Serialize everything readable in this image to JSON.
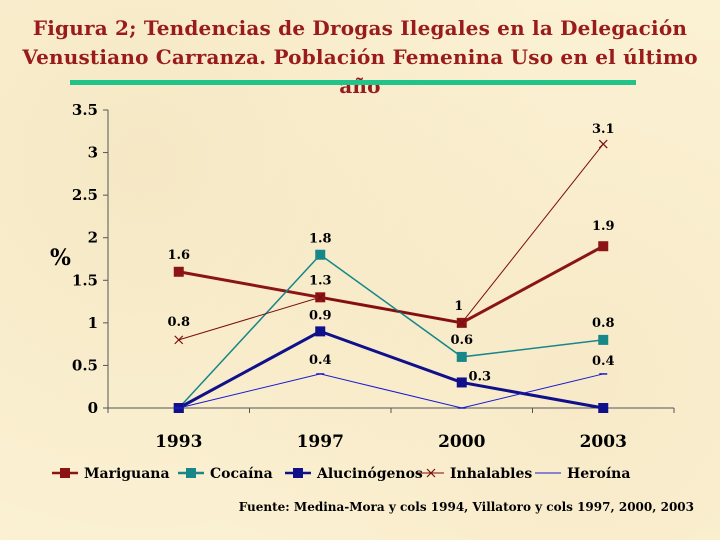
{
  "title_line1": "Figura 2; Tendencias de Drogas Ilegales en  la Delegación",
  "title_line2": "Venustiano Carranza. Población Femenina Uso en el último año",
  "source": "Fuente: Medina-Mora y cols 1994, Villatoro y cols 1997, 2000, 2003",
  "chart_data": {
    "type": "line",
    "ylabel": "%",
    "categories": [
      "1993",
      "1997",
      "2000",
      "2003"
    ],
    "yticks": [
      "0",
      "0.5",
      "1",
      "1.5",
      "2",
      "2.5",
      "3",
      "3.5"
    ],
    "ylim": [
      0,
      3.5
    ],
    "legend_position": "bottom",
    "series": [
      {
        "name": "Mariguana",
        "values": [
          1.6,
          1.3,
          1.0,
          1.9
        ],
        "labels": [
          "1.6",
          "1.3",
          "1",
          "1.9"
        ],
        "color": "#8b1414",
        "marker": "square",
        "line_width": 3
      },
      {
        "name": "Cocaína",
        "values": [
          0.0,
          1.8,
          0.6,
          0.8
        ],
        "labels": [
          "",
          "1.8",
          "0.6",
          "0.8"
        ],
        "color": "#17878a",
        "marker": "square",
        "line_width": 1.5
      },
      {
        "name": "Alucinógenos",
        "values": [
          0.0,
          0.9,
          0.3,
          0.0
        ],
        "labels": [
          "",
          "0.9",
          "0.3",
          ""
        ],
        "color": "#10108a",
        "marker": "square",
        "line_width": 3
      },
      {
        "name": "Inhalables",
        "values": [
          0.8,
          1.3,
          1.0,
          3.1
        ],
        "labels": [
          "0.8",
          "",
          "",
          "3.1"
        ],
        "color": "#7a0e0e",
        "marker": "x",
        "line_width": 1
      },
      {
        "name": "Heroína",
        "values": [
          0.0,
          0.4,
          0.0,
          0.4
        ],
        "labels": [
          "",
          "0.4",
          "",
          "0.4"
        ],
        "color": "#1a1ad0",
        "marker": "dash",
        "line_width": 1
      }
    ]
  }
}
